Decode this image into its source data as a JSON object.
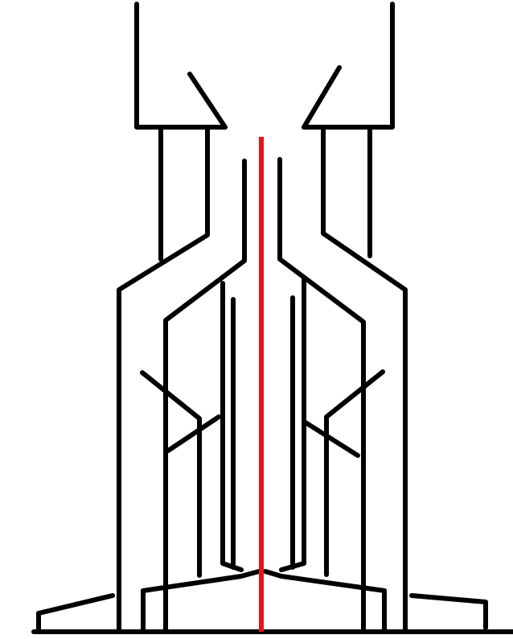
{
  "drawing": {
    "background_color": "#ffffff",
    "line_color": "#000000",
    "axis_color": "#e8141b"
  }
}
